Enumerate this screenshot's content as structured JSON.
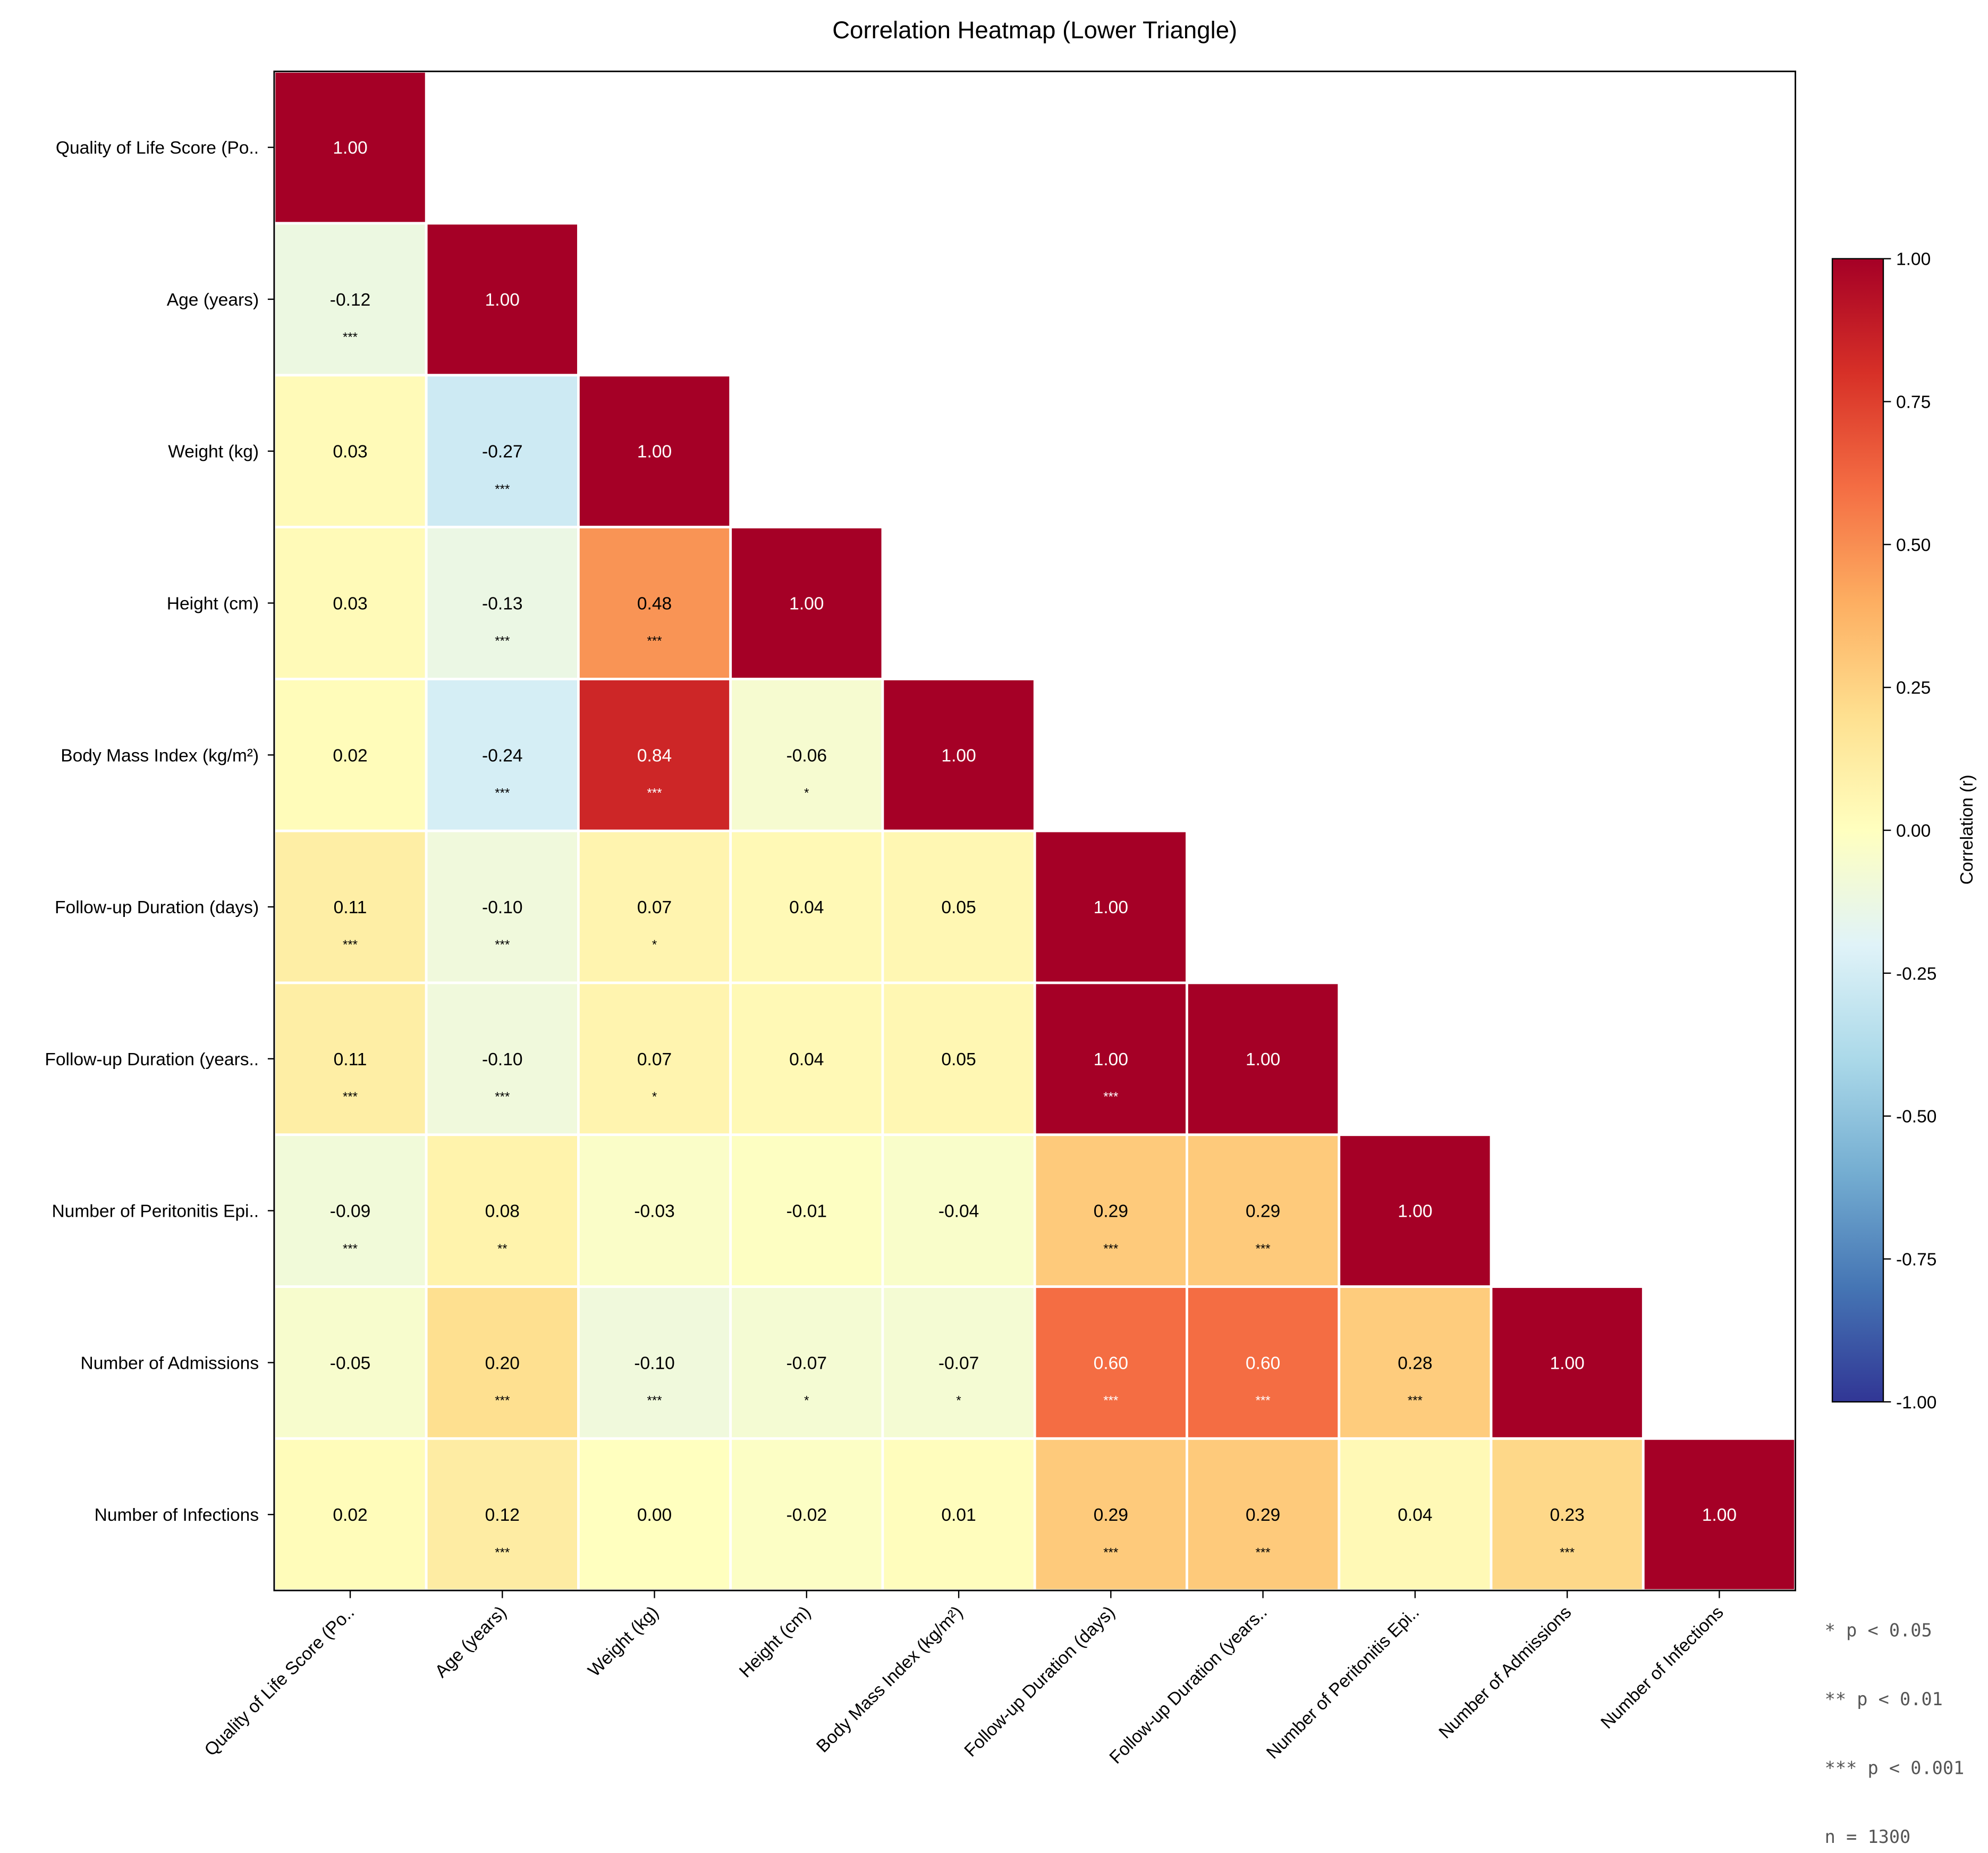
{
  "chart_data": {
    "type": "heatmap",
    "title": "Correlation Heatmap (Lower Triangle)",
    "labels": [
      "Quality of Life Score (Po..",
      "Age (years)",
      "Weight (kg)",
      "Height (cm)",
      "Body Mass Index (kg/m²)",
      "Follow-up Duration (days)",
      "Follow-up Duration (years..",
      "Number of Peritonitis Epi..",
      "Number of Admissions",
      "Number of Infections"
    ],
    "values": [
      [
        1.0
      ],
      [
        -0.12,
        1.0
      ],
      [
        0.03,
        -0.27,
        1.0
      ],
      [
        0.03,
        -0.13,
        0.48,
        1.0
      ],
      [
        0.02,
        -0.24,
        0.84,
        -0.06,
        1.0
      ],
      [
        0.11,
        -0.1,
        0.07,
        0.04,
        0.05,
        1.0
      ],
      [
        0.11,
        -0.1,
        0.07,
        0.04,
        0.05,
        1.0,
        1.0
      ],
      [
        -0.09,
        0.08,
        -0.03,
        -0.01,
        -0.04,
        0.29,
        0.29,
        1.0
      ],
      [
        -0.05,
        0.2,
        -0.1,
        -0.07,
        -0.07,
        0.6,
        0.6,
        0.28,
        1.0
      ],
      [
        0.02,
        0.12,
        -0.0,
        -0.02,
        0.01,
        0.29,
        0.29,
        0.04,
        0.23,
        1.0
      ]
    ],
    "significance": [
      [
        ""
      ],
      [
        "***",
        ""
      ],
      [
        "",
        "***",
        ""
      ],
      [
        "",
        "***",
        "***",
        ""
      ],
      [
        "",
        "***",
        "***",
        "*",
        ""
      ],
      [
        "***",
        "***",
        "*",
        "",
        "",
        ""
      ],
      [
        "***",
        "***",
        "*",
        "",
        "",
        "***",
        ""
      ],
      [
        "***",
        "**",
        "",
        "",
        "",
        "***",
        "***",
        ""
      ],
      [
        "",
        "***",
        "***",
        "*",
        "*",
        "***",
        "***",
        "***",
        ""
      ],
      [
        "",
        "***",
        "",
        "",
        "",
        "***",
        "***",
        "",
        "***",
        ""
      ]
    ],
    "colormap": "RdYlBu_r",
    "vmin": -1.0,
    "vmax": 1.0,
    "colorbar": {
      "label": "Correlation (r)",
      "ticks": [
        "-1.00",
        "-0.75",
        "-0.50",
        "-0.25",
        "0.00",
        "0.25",
        "0.50",
        "0.75",
        "1.00"
      ]
    },
    "legend_notes": [
      "*   p < 0.05",
      "**  p < 0.01",
      "*** p < 0.001",
      "n = 1300"
    ]
  }
}
